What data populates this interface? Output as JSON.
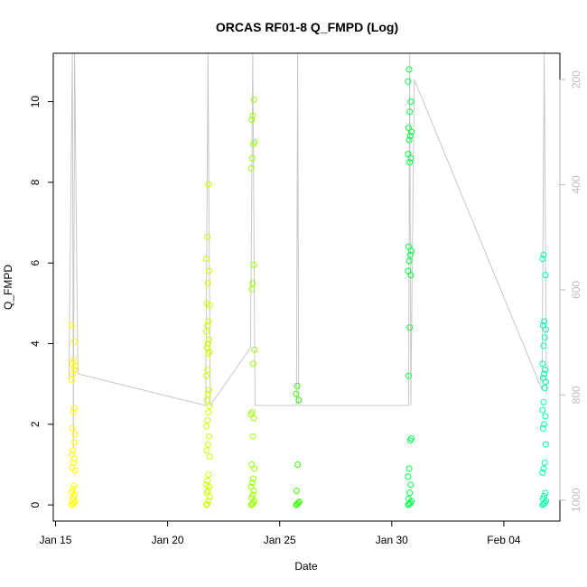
{
  "chart_data": {
    "type": "scatter",
    "title": "ORCAS RF01-8 Q_FMPD (Log)",
    "xlabel": "Date",
    "ylabel": "Q_FMPD",
    "x_ticks": [
      "Jan 15",
      "Jan 20",
      "Jan 25",
      "Jan 30",
      "Feb 04"
    ],
    "x_tick_days": [
      0,
      5,
      10,
      15,
      20
    ],
    "xlim_days": [
      -0.1,
      22.5
    ],
    "y_ticks": [
      0,
      2,
      4,
      6,
      8,
      10
    ],
    "ylim": [
      -0.4,
      11.2
    ],
    "y2_ticks": [
      200,
      400,
      600,
      800,
      1000
    ],
    "y2lim": [
      1040,
      150
    ],
    "grid": false,
    "point_style": "open-circle",
    "series": [
      {
        "flight_day": 0.8,
        "color": "#ffff00",
        "values": [
          0,
          0.02,
          0.05,
          0.08,
          0.12,
          0.18,
          0.25,
          0.32,
          0.4,
          0.48,
          0.85,
          0.92,
          1.05,
          1.15,
          1.25,
          1.35,
          1.55,
          1.75,
          1.9,
          2.3,
          2.4,
          3.1,
          3.25,
          3.35,
          3.45,
          3.5,
          3.6,
          4.05,
          4.45
        ]
      },
      {
        "flight_day": 6.8,
        "color": "#ccff00",
        "values": [
          0,
          0.02,
          0.1,
          0.2,
          0.3,
          0.35,
          0.45,
          0.5,
          0.6,
          0.75,
          1.2,
          1.35,
          1.5,
          1.7,
          1.95,
          2.1,
          2.3,
          2.45,
          2.6,
          2.75,
          2.85,
          3.2,
          3.35,
          3.75,
          3.8,
          3.9,
          4.0,
          4.1,
          4.3,
          4.45,
          4.55,
          4.95,
          5.0,
          5.5,
          5.8,
          6.1,
          6.65,
          7.95
        ]
      },
      {
        "flight_day": 8.8,
        "color": "#99ff00",
        "values": [
          0,
          0.02,
          0.05,
          0.1,
          0.18,
          0.25,
          0.35,
          0.45,
          0.55,
          0.65,
          0.9,
          1.0,
          1.7,
          2.15,
          2.25,
          2.3,
          3.5,
          3.85,
          5.35,
          5.5,
          5.95,
          8.35,
          8.6,
          8.95,
          9.0,
          9.55,
          9.65,
          10.05
        ]
      },
      {
        "flight_day": 10.8,
        "color": "#33ff00",
        "values": [
          0,
          0.02,
          0.05,
          0.08,
          0.35,
          1.0,
          2.6,
          2.75,
          2.95
        ]
      },
      {
        "flight_day": 15.8,
        "color": "#00ff44",
        "values": [
          0,
          0.02,
          0.05,
          0.1,
          0.15,
          0.3,
          0.5,
          0.7,
          0.9,
          1.6,
          1.65,
          3.2,
          4.4,
          5.7,
          5.8,
          6.05,
          6.2,
          6.3,
          6.4,
          8.5,
          8.6,
          8.7,
          9.05,
          9.15,
          9.25,
          9.35,
          9.75,
          10.0,
          10.5,
          10.8
        ]
      },
      {
        "flight_day": 21.8,
        "color": "#00ffaa",
        "values": [
          0,
          0.02,
          0.05,
          0.1,
          0.15,
          0.22,
          0.3,
          0.8,
          0.9,
          1.05,
          1.5,
          1.9,
          2.0,
          2.2,
          2.35,
          2.55,
          2.9,
          3.05,
          3.15,
          3.25,
          3.35,
          3.5,
          3.95,
          4.15,
          4.35,
          4.45,
          4.55,
          5.7,
          6.1,
          6.2
        ]
      }
    ],
    "secondary_line": {
      "color": "#c8c8c8",
      "x_days": [
        0.6,
        0.75,
        0.8,
        0.85,
        1.0,
        6.7,
        6.8,
        6.9,
        8.7,
        8.8,
        8.9,
        10.75,
        10.8,
        10.85,
        15.75,
        15.8,
        15.85,
        16.0,
        21.7,
        21.8,
        21.9
      ],
      "y2_values": [
        770,
        150,
        900,
        150,
        760,
        820,
        150,
        820,
        710,
        150,
        820,
        820,
        150,
        820,
        820,
        150,
        820,
        200,
        790,
        150,
        800
      ]
    }
  }
}
